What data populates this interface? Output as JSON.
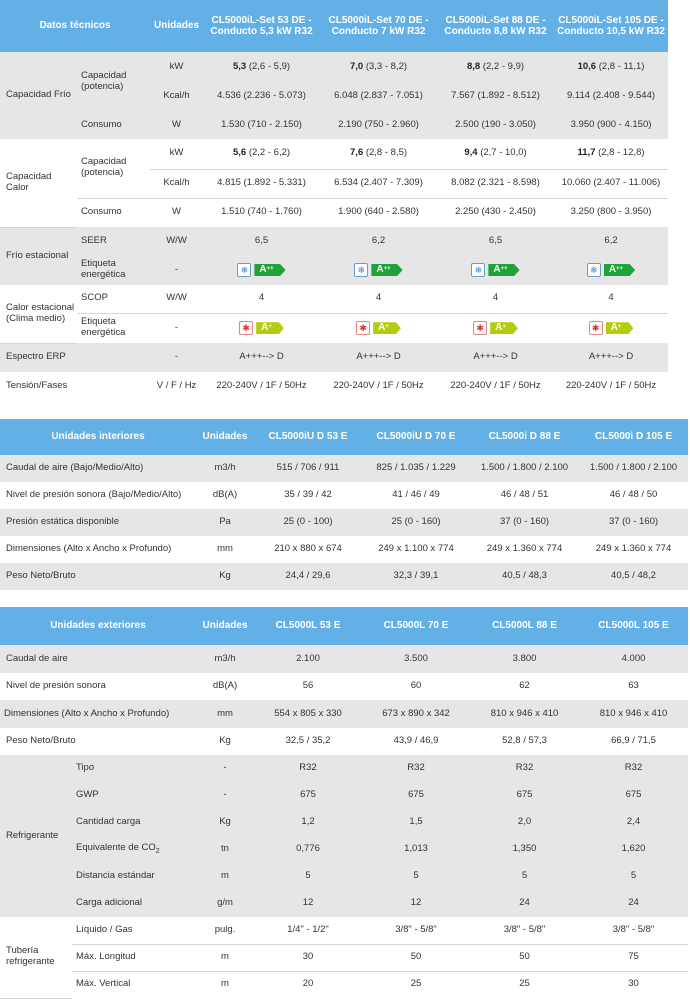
{
  "t1": {
    "headers": [
      "Datos técnicos",
      "Unidades",
      "CL5000iL-Set 53 DE - Conducto 5,3 kW R32",
      "CL5000iL-Set 70 DE - Conducto 7 kW R32",
      "CL5000iL-Set 88 DE - Conducto 8,8 kW R32",
      "CL5000iL-Set 105 DE - Conducto 10,5 kW R32"
    ],
    "frio_group": "Capacidad Frío",
    "calor_group": "Capacidad Calor",
    "capacidad_label": "Capacidad (potencia)",
    "consumo_label": "Consumo",
    "rows": {
      "frio_kw": {
        "unit": "kW",
        "v": [
          [
            "5,3",
            "(2,6 - 5,9)"
          ],
          [
            "7,0",
            "(3,3 - 8,2)"
          ],
          [
            "8,8",
            "(2,2 - 9,9)"
          ],
          [
            "10,6",
            "(2,8 - 11,1)"
          ]
        ]
      },
      "frio_kcal": {
        "unit": "Kcal/h",
        "v": [
          "4.536 (2.236 - 5.073)",
          "6.048 (2.837 - 7.051)",
          "7.567 (1.892 - 8.512)",
          "9.114 (2.408 - 9.544)"
        ]
      },
      "frio_cons": {
        "unit": "W",
        "v": [
          "1.530 (710 - 2.150)",
          "2.190 (750 - 2.960)",
          "2.500 (190 - 3.050)",
          "3.950 (900 - 4.150)"
        ]
      },
      "calor_kw": {
        "unit": "kW",
        "v": [
          [
            "5,6",
            "(2,2 - 6,2)"
          ],
          [
            "7,6",
            "(2,8 - 8,5)"
          ],
          [
            "9,4",
            "(2,7 - 10,0)"
          ],
          [
            "11,7",
            "(2,8 - 12,8)"
          ]
        ]
      },
      "calor_kcal": {
        "unit": "Kcal/h",
        "v": [
          "4.815 (1.892 - 5.331)",
          "6.534 (2.407 - 7.309)",
          "8.082 (2.321 - 8.598)",
          "10.060 (2.407 - 11.006)"
        ]
      },
      "calor_cons": {
        "unit": "W",
        "v": [
          "1.510 (740 - 1.760)",
          "1.900 (640 - 2.580)",
          "2.250 (430 - 2.450)",
          "3.250 (800 - 3.950)"
        ]
      }
    },
    "frio_est": {
      "group": "Frío estacional",
      "seer_label": "SEER",
      "seer_unit": "W/W",
      "seer": [
        "6,5",
        "6,2",
        "6,5",
        "6,2"
      ],
      "etiqueta_label": "Etiqueta energética",
      "etiqueta_unit": "-",
      "class_text": "A",
      "class_sup": "++",
      "color": "#20a23a"
    },
    "calor_est": {
      "group": "Calor estacional (Clima medio)",
      "scop_label": "SCOP",
      "scop_unit": "W/W",
      "scop": [
        "4",
        "4",
        "4",
        "4"
      ],
      "etiqueta_label": "Etiqueta energética",
      "etiqueta_unit": "-",
      "class_text": "A",
      "class_sup": "+",
      "color": "#b4cc10"
    },
    "erp": {
      "label": "Espectro ERP",
      "unit": "-",
      "v": [
        "A+++--> D",
        "A+++--> D",
        "A+++--> D",
        "A+++--> D"
      ]
    },
    "tension": {
      "label": "Tensión/Fases",
      "unit": "V / F / Hz",
      "v": [
        "220-240V / 1F / 50Hz",
        "220-240V / 1F / 50Hz",
        "220-240V / 1F / 50Hz",
        "220-240V / 1F / 50Hz"
      ]
    }
  },
  "t2": {
    "headers": [
      "Unidades interiores",
      "Unidades",
      "CL5000iU D 53 E",
      "CL5000iU D 70 E",
      "CL5000i D 88 E",
      "CL5000i D 105 E"
    ],
    "rows": [
      {
        "label": "Caudal de aire (Bajo/Medio/Alto)",
        "unit": "m3/h",
        "v": [
          "515 / 706 / 911",
          "825 / 1.035 / 1.229",
          "1.500 / 1.800 / 2.100",
          "1.500 / 1.800 / 2.100"
        ]
      },
      {
        "label": "Nivel de presión sonora (Bajo/Medio/Alto)",
        "unit": "dB(A)",
        "v": [
          "35 / 39 / 42",
          "41 / 46 / 49",
          "46 / 48 / 51",
          "46 / 48 / 50"
        ]
      },
      {
        "label": "Presión estática disponible",
        "unit": "Pa",
        "v": [
          "25 (0 - 100)",
          "25 (0 - 160)",
          "37 (0 - 160)",
          "37 (0 - 160)"
        ]
      },
      {
        "label": "Dimensiones (Alto x Ancho x Profundo)",
        "unit": "mm",
        "v": [
          "210 x 880 x 674",
          "249 x 1.100 x 774",
          "249 x 1.360 x 774",
          "249 x 1.360 x 774"
        ]
      },
      {
        "label": "Peso Neto/Bruto",
        "unit": "Kg",
        "v": [
          "24,4 / 29,6",
          "32,3 / 39,1",
          "40,5 / 48,3",
          "40,5 / 48,2"
        ]
      }
    ]
  },
  "t3": {
    "headers": [
      "Unidades exteriores",
      "Unidades",
      "CL5000L 53 E",
      "CL5000L 70 E",
      "CL5000L 88 E",
      "CL5000L 105 E"
    ],
    "rows": [
      {
        "label": "Caudal de aire",
        "unit": "m3/h",
        "v": [
          "2.100",
          "3.500",
          "3.800",
          "4.000"
        ]
      },
      {
        "label": "Nivel de presión sonora",
        "unit": "dB(A)",
        "v": [
          "56",
          "60",
          "62",
          "63"
        ]
      },
      {
        "label": "Dimensiones (Alto x Ancho x Profundo)",
        "unit": "mm",
        "v": [
          "554 x 805 x 330",
          "673 x 890 x 342",
          "810 x 946 x 410",
          "810 x 946 x 410"
        ]
      },
      {
        "label": "Peso Neto/Bruto",
        "unit": "Kg",
        "v": [
          "32,5 / 35,2",
          "43,9 / 46,9",
          "52,8 / 57,3",
          "66,9 / 71,5"
        ]
      }
    ],
    "refrigerante": {
      "group": "Refrigerante",
      "rows": [
        {
          "label": "Tipo",
          "unit": "-",
          "v": [
            "R32",
            "R32",
            "R32",
            "R32"
          ]
        },
        {
          "label": "GWP",
          "unit": "-",
          "v": [
            "675",
            "675",
            "675",
            "675"
          ]
        },
        {
          "label": "Cantidad carga",
          "unit": "Kg",
          "v": [
            "1,2",
            "1,5",
            "2,0",
            "2,4"
          ]
        },
        {
          "label": "Equivalente de CO",
          "label_sub": "2",
          "unit": "tn",
          "v": [
            "0,776",
            "1,013",
            "1,350",
            "1,620"
          ]
        },
        {
          "label": "Distancia estándar",
          "unit": "m",
          "v": [
            "5",
            "5",
            "5",
            "5"
          ]
        },
        {
          "label": "Carga adicional",
          "unit": "g/m",
          "v": [
            "12",
            "12",
            "24",
            "24"
          ]
        }
      ]
    },
    "tuberia": {
      "group": "Tubería refrigerante",
      "rows": [
        {
          "label": "Líquido / Gas",
          "unit": "pulg.",
          "v": [
            "1/4\" - 1/2\"",
            "3/8\" - 5/8\"",
            "3/8\" - 5/8\"",
            "3/8\" - 5/8\""
          ]
        },
        {
          "label": "Máx. Longitud",
          "unit": "m",
          "v": [
            "30",
            "50",
            "50",
            "75"
          ]
        },
        {
          "label": "Máx. Vertical",
          "unit": "m",
          "v": [
            "20",
            "25",
            "25",
            "30"
          ]
        }
      ]
    }
  }
}
